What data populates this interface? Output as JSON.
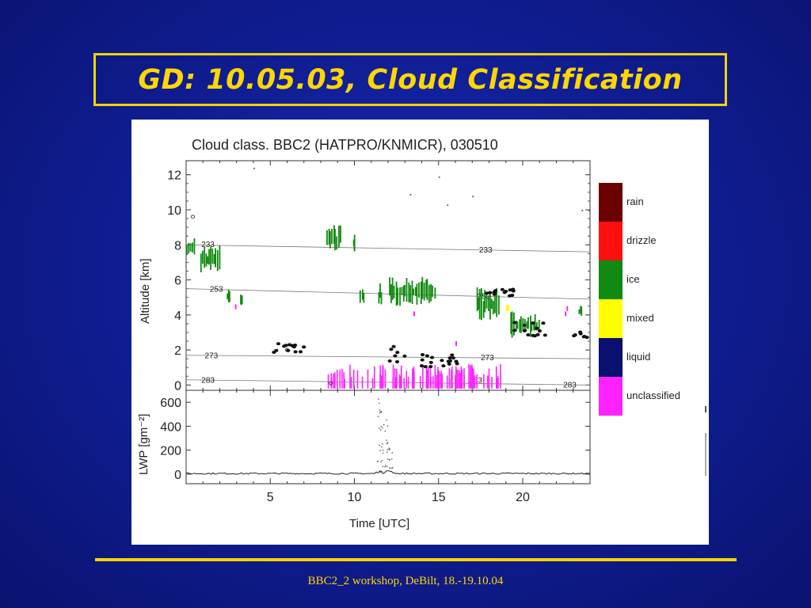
{
  "slide": {
    "title": "GD: 10.05.03, Cloud Classification",
    "footer": "BBC2_2 workshop, DeBilt, 18.-19.10.04"
  },
  "colors": {
    "background": "#0f1c8a",
    "title_text": "#ffd700",
    "frame": "#f5d300"
  },
  "chart_data": [
    {
      "type": "scatter",
      "title": "Cloud class. BBC2 (HATPRO/KNMICR), 030510",
      "ylabel": "Altitude [km]",
      "xlabel": "Time [UTC]",
      "xlim": [
        0,
        24
      ],
      "ylim": [
        -0.3,
        12.8
      ],
      "y_ticks": [
        0,
        2,
        4,
        6,
        8,
        10,
        12
      ],
      "x_ticks": [
        5,
        10,
        15,
        20
      ],
      "legend": {
        "placement": "right",
        "entries": [
          {
            "name": "rain",
            "color": "#6b0000"
          },
          {
            "name": "drizzle",
            "color": "#ff1010"
          },
          {
            "name": "ice",
            "color": "#118a11"
          },
          {
            "name": "mixed",
            "color": "#ffff00"
          },
          {
            "name": "liquid",
            "color": "#0a1070"
          },
          {
            "name": "unclassified",
            "color": "#ff22ff"
          }
        ]
      },
      "isotherms": [
        {
          "label": "233",
          "points": [
            [
              0,
              8.0
            ],
            [
              24,
              7.6
            ]
          ],
          "label_at": [
            [
              1.3,
              8.05
            ],
            [
              17.8,
              7.75
            ]
          ]
        },
        {
          "label": "253",
          "points": [
            [
              0,
              5.5
            ],
            [
              24,
              4.9
            ]
          ],
          "label_at": [
            [
              1.8,
              5.5
            ],
            [
              17.7,
              5.1
            ]
          ]
        },
        {
          "label": "273",
          "points": [
            [
              0,
              1.7
            ],
            [
              24,
              1.5
            ]
          ],
          "label_at": [
            [
              1.5,
              1.7
            ],
            [
              17.9,
              1.6
            ]
          ]
        },
        {
          "label": "283",
          "points": [
            [
              0,
              0.3
            ],
            [
              24,
              0.0
            ]
          ],
          "label_at": [
            [
              1.3,
              0.3
            ],
            [
              17.2,
              0.3
            ],
            [
              22.8,
              0.05
            ]
          ]
        }
      ],
      "ice_clusters": [
        {
          "x": [
            0.0,
            0.5
          ],
          "y": [
            7.3,
            8.5
          ]
        },
        {
          "x": [
            0.8,
            2.0
          ],
          "y": [
            6.4,
            8.0
          ]
        },
        {
          "x": [
            2.4,
            2.6
          ],
          "y": [
            4.6,
            5.5
          ]
        },
        {
          "x": [
            3.2,
            3.3
          ],
          "y": [
            4.4,
            5.4
          ]
        },
        {
          "x": [
            8.3,
            9.2
          ],
          "y": [
            7.6,
            9.2
          ]
        },
        {
          "x": [
            9.9,
            10.0
          ],
          "y": [
            7.6,
            8.7
          ]
        },
        {
          "x": [
            10.3,
            10.6
          ],
          "y": [
            4.6,
            5.7
          ]
        },
        {
          "x": [
            11.4,
            11.6
          ],
          "y": [
            4.6,
            5.8
          ]
        },
        {
          "x": [
            12.0,
            14.8
          ],
          "y": [
            4.5,
            6.3
          ]
        },
        {
          "x": [
            17.2,
            18.6
          ],
          "y": [
            3.7,
            5.6
          ]
        },
        {
          "x": [
            19.2,
            21.0
          ],
          "y": [
            2.7,
            4.2
          ]
        },
        {
          "x": [
            23.3,
            23.5
          ],
          "y": [
            3.9,
            4.6
          ]
        }
      ],
      "liquid_clusters": [
        {
          "x": [
            5.2,
            7.0
          ],
          "y": [
            1.8,
            2.4
          ]
        },
        {
          "x": [
            12.0,
            13.0
          ],
          "y": [
            1.2,
            2.2
          ]
        },
        {
          "x": [
            14.0,
            16.5
          ],
          "y": [
            1.0,
            1.8
          ]
        },
        {
          "x": [
            17.5,
            19.5
          ],
          "y": [
            5.0,
            5.5
          ]
        },
        {
          "x": [
            19.5,
            21.5
          ],
          "y": [
            2.8,
            3.6
          ]
        },
        {
          "x": [
            23.0,
            24.0
          ],
          "y": [
            2.7,
            3.1
          ]
        }
      ],
      "unclassified_region": {
        "x": [
          8.0,
          19.0
        ],
        "y": [
          -0.2,
          1.2
        ]
      },
      "mixed_points": [
        {
          "x": 19.1,
          "y": 4.4
        }
      ]
    },
    {
      "type": "line",
      "ylabel": "LWP [gm⁻²]",
      "xlabel": "Time [UTC]",
      "xlim": [
        0,
        24
      ],
      "ylim": [
        -80,
        700
      ],
      "y_ticks": [
        0,
        200,
        400,
        600
      ],
      "x_ticks": [
        5,
        10,
        15,
        20
      ],
      "baseline": 5,
      "spikes": [
        {
          "x": 11.5,
          "values": [
            30,
            120,
            250,
            400,
            520,
            640
          ]
        },
        {
          "x": 11.8,
          "values": [
            80,
            200,
            310,
            450
          ]
        },
        {
          "x": 12.1,
          "values": [
            60,
            140,
            220
          ]
        }
      ]
    }
  ]
}
